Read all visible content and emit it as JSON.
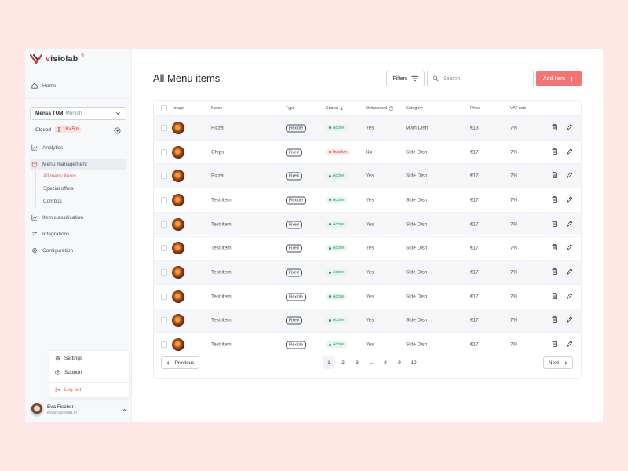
{
  "brand": {
    "name_part1": "v",
    "name_part2": "isiolab",
    "reg": "®"
  },
  "sidebar": {
    "home_label": "Home",
    "location": {
      "name": "Mensa TUM",
      "city": "Munich"
    },
    "status": {
      "label": "Closed",
      "time": "18:45m"
    },
    "nav": {
      "analytics": "Analytics",
      "menu_management": "Menu management",
      "item_classification": "Item classification",
      "integrations": "Integrations",
      "configuration": "Configuration"
    },
    "sub_items": {
      "all_menu_items": "All menu items",
      "special_offers": "Special offers",
      "combos": "Combos"
    },
    "bottom_menu": {
      "settings": "Settings",
      "support": "Support",
      "logout": "Log out"
    },
    "profile": {
      "name": "Eva Fischer",
      "email": "eva@visiolab.io"
    }
  },
  "main": {
    "title": "All Menu items",
    "filters_label": "Filters",
    "search_placeholder": "Search",
    "add_label": "Add Item",
    "table": {
      "headers": {
        "image": "Image",
        "name": "Name",
        "type": "Type",
        "status": "Status",
        "onboarded": "Onboarded",
        "category": "Category",
        "price": "Price",
        "vat": "VAT rate"
      },
      "rows": [
        {
          "name": "Pizza",
          "type": "Flexible",
          "status": "Active",
          "status_kind": "active",
          "onboarded": "Yes",
          "category": "Main Dish",
          "price": "€13",
          "vat": "7%"
        },
        {
          "name": "Chips",
          "type": "Fixed",
          "status": "Inactive",
          "status_kind": "inactive",
          "onboarded": "No",
          "category": "Side Dish",
          "price": "€17",
          "vat": "7%"
        },
        {
          "name": "Pizza",
          "type": "Fixed",
          "status": "Active",
          "status_kind": "active",
          "onboarded": "Yes",
          "category": "Side Dish",
          "price": "€17",
          "vat": "7%"
        },
        {
          "name": "Test item",
          "type": "Flexible",
          "status": "Active",
          "status_kind": "active",
          "onboarded": "Yes",
          "category": "Side Dish",
          "price": "€17",
          "vat": "7%"
        },
        {
          "name": "Test item",
          "type": "Fixed",
          "status": "Active",
          "status_kind": "active",
          "onboarded": "Yes",
          "category": "Side Dish",
          "price": "€17",
          "vat": "7%"
        },
        {
          "name": "Test item",
          "type": "Fixed",
          "status": "Active",
          "status_kind": "active",
          "onboarded": "Yes",
          "category": "Side Dish",
          "price": "€17",
          "vat": "7%"
        },
        {
          "name": "Test item",
          "type": "Fixed",
          "status": "Active",
          "status_kind": "active",
          "onboarded": "Yes",
          "category": "Side Dish",
          "price": "€17",
          "vat": "7%"
        },
        {
          "name": "Test item",
          "type": "Flexible",
          "status": "Active",
          "status_kind": "active",
          "onboarded": "Yes",
          "category": "Side Dish",
          "price": "€17",
          "vat": "7%"
        },
        {
          "name": "Test item",
          "type": "Fixed",
          "status": "Active",
          "status_kind": "active",
          "onboarded": "Yes",
          "category": "Side Dish",
          "price": "€17",
          "vat": "7%"
        },
        {
          "name": "Test item",
          "type": "Flexible",
          "status": "Active",
          "status_kind": "active",
          "onboarded": "Yes",
          "category": "Side Dish",
          "price": "€17",
          "vat": "7%"
        }
      ]
    },
    "pagination": {
      "previous": "Previous",
      "next": "Next",
      "pages": [
        "1",
        "2",
        "3",
        "...",
        "8",
        "9",
        "10"
      ],
      "current": "1"
    }
  },
  "colors": {
    "accent": "#f07576",
    "brand": "#c23a3a",
    "active": "#2f8f58",
    "inactive": "#c23a3a"
  },
  "icons": [
    "home-icon",
    "chevron-down-icon",
    "hourglass-icon",
    "plus-circle-icon",
    "analytics-icon",
    "calendar-icon",
    "classification-icon",
    "integrations-icon",
    "gear-icon",
    "help-icon",
    "logout-icon",
    "filter-icon",
    "search-icon",
    "plus-icon",
    "trash-icon",
    "pencil-icon",
    "arrow-left-icon",
    "arrow-right-icon",
    "arrow-down-icon"
  ]
}
